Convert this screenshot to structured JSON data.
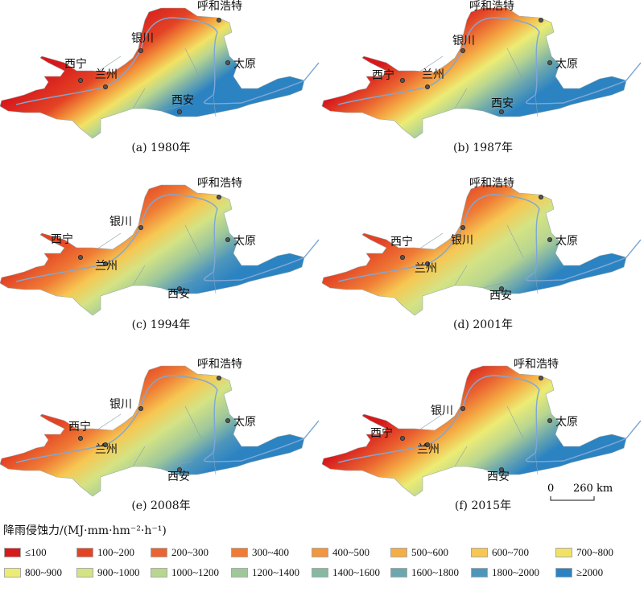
{
  "panels": [
    {
      "caption": "(a) 1980年"
    },
    {
      "caption": "(b) 1987年"
    },
    {
      "caption": "(c) 1994年"
    },
    {
      "caption": "(d) 2001年"
    },
    {
      "caption": "(e) 2008年"
    },
    {
      "caption": "(f) 2015年"
    }
  ],
  "cities": [
    "呼和浩特",
    "银川",
    "西宁",
    "兰州",
    "西安",
    "太原"
  ],
  "scale_bar": {
    "zero": "0",
    "distance": "260 km"
  },
  "legend": {
    "title": "降雨侵蚀力/(MJ·mm·hm⁻²·h⁻¹)",
    "items": [
      {
        "label": "≤100",
        "color": "#d7191c"
      },
      {
        "label": "100~200",
        "color": "#e34325"
      },
      {
        "label": "200~300",
        "color": "#ea6330"
      },
      {
        "label": "300~400",
        "color": "#ef7b35"
      },
      {
        "label": "400~500",
        "color": "#f3963c"
      },
      {
        "label": "500~600",
        "color": "#f5ad45"
      },
      {
        "label": "600~700",
        "color": "#f6c752"
      },
      {
        "label": "700~800",
        "color": "#f2e264"
      },
      {
        "label": "800~900",
        "color": "#ecec74"
      },
      {
        "label": "900~1000",
        "color": "#d4e384"
      },
      {
        "label": "1000~1200",
        "color": "#b8d690"
      },
      {
        "label": "1200~1400",
        "color": "#9fc89a"
      },
      {
        "label": "1400~1600",
        "color": "#86b8a2"
      },
      {
        "label": "1600~1800",
        "color": "#6ba7ae"
      },
      {
        "label": "1800~2000",
        "color": "#4e96bc"
      },
      {
        "label": "≥2000",
        "color": "#2c83c2"
      }
    ]
  }
}
